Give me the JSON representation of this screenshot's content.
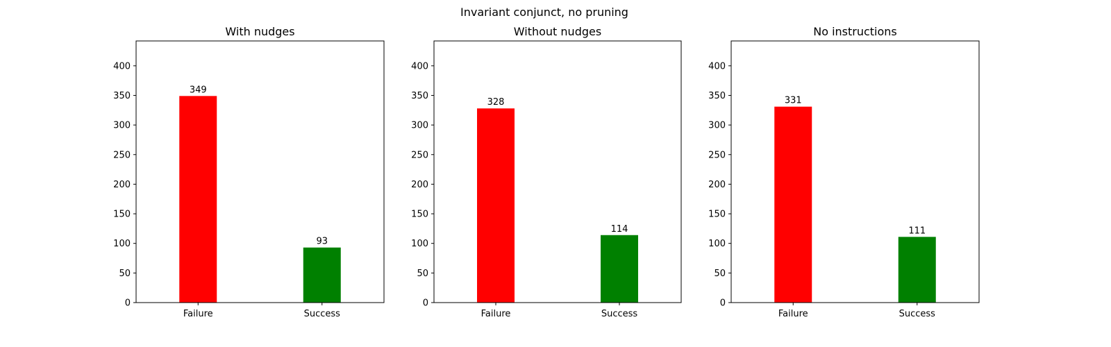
{
  "figure_title": "Invariant conjunct, no pruning",
  "colors": {
    "Failure": "#ff0000",
    "Success": "#008000"
  },
  "chart_data": [
    {
      "type": "bar",
      "title": "With nudges",
      "categories": [
        "Failure",
        "Success"
      ],
      "values": [
        349,
        93
      ],
      "colors": [
        "#ff0000",
        "#008000"
      ],
      "ylim": [
        0,
        442
      ],
      "yticks": [
        0,
        50,
        100,
        150,
        200,
        250,
        300,
        350,
        400
      ],
      "xlabel": "",
      "ylabel": "",
      "grid": false
    },
    {
      "type": "bar",
      "title": "Without nudges",
      "categories": [
        "Failure",
        "Success"
      ],
      "values": [
        328,
        114
      ],
      "colors": [
        "#ff0000",
        "#008000"
      ],
      "ylim": [
        0,
        442
      ],
      "yticks": [
        0,
        50,
        100,
        150,
        200,
        250,
        300,
        350,
        400
      ],
      "xlabel": "",
      "ylabel": "",
      "grid": false
    },
    {
      "type": "bar",
      "title": "No instructions",
      "categories": [
        "Failure",
        "Success"
      ],
      "values": [
        331,
        111
      ],
      "colors": [
        "#ff0000",
        "#008000"
      ],
      "ylim": [
        0,
        442
      ],
      "yticks": [
        0,
        50,
        100,
        150,
        200,
        250,
        300,
        350,
        400
      ],
      "xlabel": "",
      "ylabel": "",
      "grid": false
    }
  ]
}
